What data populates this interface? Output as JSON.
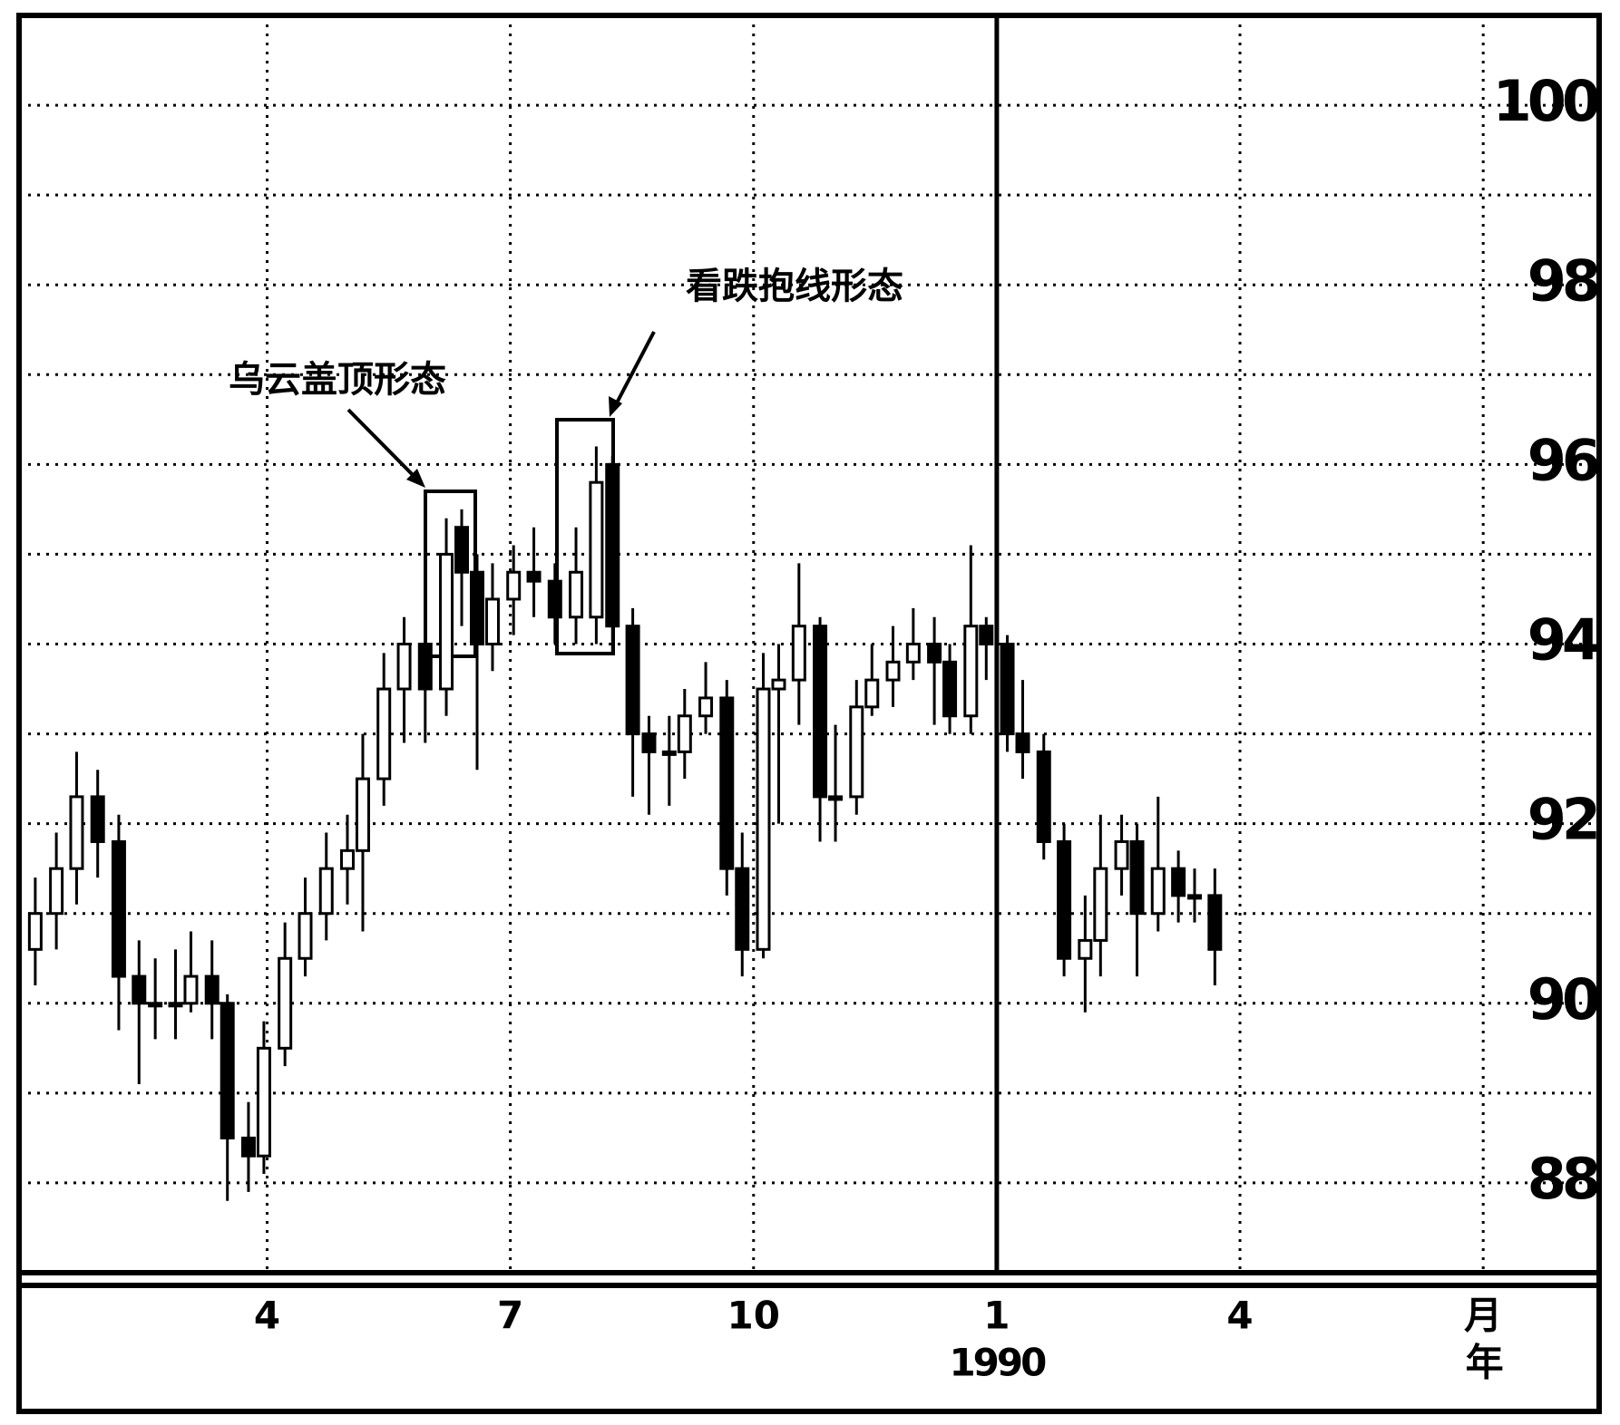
{
  "chart_data": {
    "type": "candlestick",
    "annotations": [
      "乌云盖顶形态",
      "看跌抱线形态"
    ],
    "x": [
      1.14,
      1.4,
      1.65,
      1.91,
      2.17,
      2.42,
      2.62,
      2.87,
      3.06,
      3.32,
      3.51,
      3.77,
      3.96,
      4.22,
      4.47,
      4.73,
      4.99,
      5.18,
      5.44,
      5.69,
      5.95,
      6.21,
      6.4,
      6.59,
      6.78,
      7.04,
      7.29,
      7.55,
      7.81,
      8.06,
      8.26,
      8.51,
      8.71,
      8.96,
      9.15,
      9.41,
      9.67,
      9.86,
      10.12,
      10.31,
      10.56,
      10.82,
      11.01,
      11.27,
      11.46,
      11.72,
      11.97,
      12.23,
      12.42,
      12.68,
      12.87,
      13.13,
      13.32,
      13.58,
      13.83,
      14.09,
      14.28,
      14.54,
      14.73,
      14.99,
      15.24,
      15.44,
      15.69
    ],
    "open": [
      90.6,
      91,
      91.5,
      92.3,
      91.8,
      90.3,
      90,
      90,
      90,
      90.3,
      90,
      88.5,
      88.3,
      89.5,
      90.5,
      91,
      91.5,
      91.7,
      92.5,
      93.5,
      94,
      93.5,
      95.3,
      94.8,
      94,
      94.5,
      94.8,
      94.7,
      94.3,
      94.3,
      96,
      94.2,
      93,
      92.8,
      92.8,
      93.2,
      93.4,
      91.5,
      90.6,
      93.5,
      93.6,
      94.2,
      92.3,
      92.3,
      93.3,
      93.6,
      93.8,
      94,
      93.8,
      93.2,
      94.2,
      94,
      93,
      92.8,
      91.8,
      90.5,
      90.7,
      91.5,
      91.8,
      91,
      91.5,
      91.2,
      91.2
    ],
    "high": [
      91.4,
      91.9,
      92.8,
      92.6,
      92.1,
      90.7,
      90.5,
      90.6,
      90.8,
      90.7,
      90.1,
      88.9,
      89.8,
      90.9,
      91.4,
      91.9,
      92.1,
      93,
      93.9,
      94.3,
      94.2,
      95.4,
      95.5,
      95,
      94.9,
      95.1,
      95.3,
      94.9,
      95.3,
      96.2,
      96.1,
      94.4,
      93.2,
      93.2,
      93.5,
      93.8,
      93.6,
      91.9,
      93.9,
      94,
      94.9,
      94.3,
      93.1,
      93.6,
      94,
      94.2,
      94.4,
      94.3,
      94,
      95.1,
      94.3,
      94.1,
      93.6,
      93,
      92,
      91.2,
      92.1,
      92.1,
      92,
      92.3,
      91.7,
      91.5,
      91.5
    ],
    "low": [
      90.2,
      90.6,
      91.1,
      91.4,
      89.7,
      89.1,
      89.6,
      89.6,
      89.9,
      89.6,
      87.8,
      87.9,
      88.1,
      89.3,
      90.3,
      90.7,
      91.1,
      90.8,
      92.2,
      92.9,
      92.9,
      93.2,
      94.2,
      92.6,
      93.7,
      94.1,
      94.3,
      94,
      94,
      94,
      93.9,
      92.3,
      92.1,
      92.2,
      92.5,
      93,
      91.2,
      90.3,
      90.5,
      92,
      93.1,
      91.8,
      91.8,
      92.1,
      93.2,
      93.3,
      93.6,
      93.1,
      93,
      93,
      93.6,
      92.8,
      92.5,
      91.6,
      90.3,
      89.9,
      90.3,
      91.2,
      90.3,
      90.8,
      90.9,
      90.9,
      90.2
    ],
    "close": [
      91,
      91.5,
      92.3,
      91.8,
      90.3,
      90,
      90,
      90,
      90.3,
      90,
      88.5,
      88.3,
      89.5,
      90.5,
      91,
      91.5,
      91.7,
      92.5,
      93.5,
      94,
      93.5,
      95,
      94.8,
      94,
      94.5,
      94.8,
      94.7,
      94.3,
      94.8,
      95.8,
      94.2,
      93,
      92.8,
      92.8,
      93.2,
      93.4,
      91.5,
      90.6,
      93.5,
      93.6,
      94.2,
      92.3,
      92.3,
      93.3,
      93.6,
      93.8,
      94,
      93.8,
      93.2,
      94.2,
      94,
      93,
      92.8,
      91.8,
      90.5,
      90.7,
      91.5,
      91.8,
      91,
      91.5,
      91.2,
      91.2,
      90.6
    ],
    "xlim": [
      0.94,
      20.43
    ],
    "xticks": [
      4,
      7,
      10,
      {
        "value": 13,
        "label": "1"
      },
      {
        "value": 16,
        "label": "4"
      },
      {
        "value": 19,
        "label": "月"
      }
    ],
    "year_labels": [
      {
        "value": 13,
        "label": "1990"
      },
      {
        "value": 19,
        "label": "年"
      }
    ],
    "ylim": [
      87,
      101
    ],
    "yticks": [
      88,
      90,
      92,
      94,
      96,
      98,
      100
    ],
    "minor_yticks": [
      89,
      91,
      93,
      95,
      97,
      99
    ],
    "grid": true
  }
}
